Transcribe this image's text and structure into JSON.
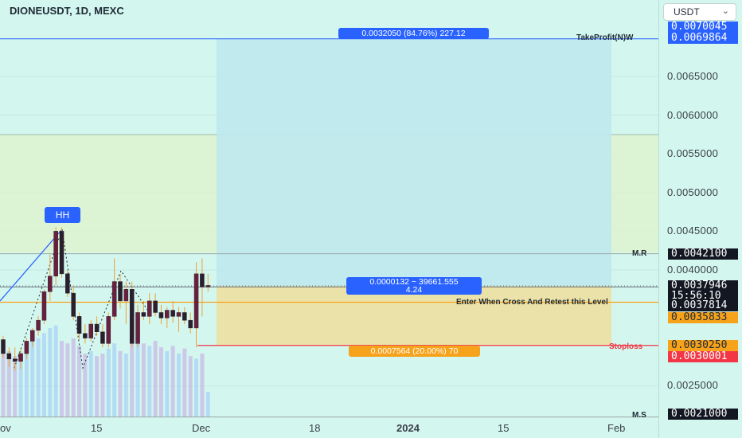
{
  "header": {
    "title": "DIONEUSDT, 1D, MEXC"
  },
  "currency_selector": {
    "value": "USDT",
    "chevron_icon": "chevron-down-icon"
  },
  "price_axis": {
    "ticks": [
      "0.0065000",
      "0.0060000",
      "0.0055000",
      "0.0050000",
      "0.0045000",
      "0.0040000",
      "0.0025000"
    ],
    "tags": [
      {
        "text": "0.0070045",
        "bg": "#2962ff",
        "fg": "#ffffff"
      },
      {
        "text": "0.0069864",
        "bg": "#2962ff",
        "fg": "#ffffff"
      },
      {
        "text": "0.0042100",
        "bg": "#131722",
        "fg": "#ffffff"
      },
      {
        "text": "0.0037946",
        "bg": "#131722",
        "fg": "#ffffff"
      },
      {
        "text": "15:56:10",
        "bg": "#131722",
        "fg": "#ffffff"
      },
      {
        "text": "0.0037814",
        "bg": "#131722",
        "fg": "#ffffff"
      },
      {
        "text": "0.0035833",
        "bg": "#f7a21b",
        "fg": "#1f2a36"
      },
      {
        "text": "0.0030250",
        "bg": "#f7a21b",
        "fg": "#1f2a36"
      },
      {
        "text": "0.0030001",
        "bg": "#f23645",
        "fg": "#ffffff"
      },
      {
        "text": "0.0021000",
        "bg": "#131722",
        "fg": "#ffffff"
      }
    ]
  },
  "time_axis": {
    "labels": [
      "ov",
      "15",
      "Dec",
      "18",
      "2024",
      "15",
      "Feb"
    ]
  },
  "level_labels": {
    "take_profit": "TakeProfit(N)W",
    "mr": "M.R",
    "entry": "Enter When Cross And Retest this Level",
    "stoploss": "Stoploss",
    "ms": "M.S"
  },
  "position_tool": {
    "target_label": "0.0032050 (84.76%) 227.12",
    "center_label_line1": "0.0000132 ~ 39661.555",
    "center_label_line2": "4.24",
    "stop_label": "0.0007564 (20.00%) 70",
    "colors": {
      "target_zone": "#bfe8ee",
      "stop_zone": "#ecdfa0",
      "pill_blue": "#2962ff",
      "pill_orange": "#f7a21b"
    }
  },
  "annotation": {
    "hh_label": "HH"
  },
  "chart_data": {
    "type": "candlestick",
    "symbol": "DIONEUSDT",
    "interval": "1D",
    "exchange": "MEXC",
    "ylim": [
      0.002,
      0.0072
    ],
    "levels": {
      "take_profit": 0.0069864,
      "mr": 0.00421,
      "last": 0.0037946,
      "entry": 0.0037814,
      "entry_orange": 0.0035833,
      "stop_zone_top": 0.003025,
      "stoploss": 0.0030001,
      "ms": 0.0021
    },
    "candles": [
      {
        "o": 0.0031,
        "h": 0.00315,
        "l": 0.00286,
        "c": 0.00292
      },
      {
        "o": 0.00292,
        "h": 0.003,
        "l": 0.00275,
        "c": 0.00285
      },
      {
        "o": 0.00285,
        "h": 0.003,
        "l": 0.0027,
        "c": 0.00282
      },
      {
        "o": 0.00282,
        "h": 0.00298,
        "l": 0.00272,
        "c": 0.00292
      },
      {
        "o": 0.00292,
        "h": 0.00312,
        "l": 0.00285,
        "c": 0.00308
      },
      {
        "o": 0.00308,
        "h": 0.00325,
        "l": 0.003,
        "c": 0.00322
      },
      {
        "o": 0.00322,
        "h": 0.0034,
        "l": 0.00315,
        "c": 0.00335
      },
      {
        "o": 0.00335,
        "h": 0.00375,
        "l": 0.0033,
        "c": 0.00372
      },
      {
        "o": 0.00372,
        "h": 0.0042,
        "l": 0.0036,
        "c": 0.00392
      },
      {
        "o": 0.00392,
        "h": 0.00455,
        "l": 0.0038,
        "c": 0.0045
      },
      {
        "o": 0.0045,
        "h": 0.00455,
        "l": 0.0039,
        "c": 0.00395
      },
      {
        "o": 0.00395,
        "h": 0.004,
        "l": 0.00365,
        "c": 0.0037
      },
      {
        "o": 0.0037,
        "h": 0.0038,
        "l": 0.00335,
        "c": 0.0034
      },
      {
        "o": 0.0034,
        "h": 0.00345,
        "l": 0.0031,
        "c": 0.00318
      },
      {
        "o": 0.00318,
        "h": 0.0033,
        "l": 0.00305,
        "c": 0.00312
      },
      {
        "o": 0.00312,
        "h": 0.00335,
        "l": 0.00308,
        "c": 0.0033
      },
      {
        "o": 0.0033,
        "h": 0.0034,
        "l": 0.00315,
        "c": 0.0032
      },
      {
        "o": 0.0032,
        "h": 0.0033,
        "l": 0.003,
        "c": 0.00305
      },
      {
        "o": 0.00305,
        "h": 0.00345,
        "l": 0.003,
        "c": 0.0034
      },
      {
        "o": 0.0034,
        "h": 0.00415,
        "l": 0.00335,
        "c": 0.00385
      },
      {
        "o": 0.00385,
        "h": 0.00395,
        "l": 0.0035,
        "c": 0.0036
      },
      {
        "o": 0.0036,
        "h": 0.00385,
        "l": 0.0033,
        "c": 0.00375
      },
      {
        "o": 0.00375,
        "h": 0.00385,
        "l": 0.003,
        "c": 0.00305
      },
      {
        "o": 0.00305,
        "h": 0.00355,
        "l": 0.003,
        "c": 0.00345
      },
      {
        "o": 0.00345,
        "h": 0.0036,
        "l": 0.00335,
        "c": 0.0034
      },
      {
        "o": 0.0034,
        "h": 0.0037,
        "l": 0.0033,
        "c": 0.0036
      },
      {
        "o": 0.0036,
        "h": 0.0037,
        "l": 0.0034,
        "c": 0.00345
      },
      {
        "o": 0.00345,
        "h": 0.00355,
        "l": 0.0033,
        "c": 0.00338
      },
      {
        "o": 0.00338,
        "h": 0.00352,
        "l": 0.00325,
        "c": 0.00348
      },
      {
        "o": 0.00348,
        "h": 0.0036,
        "l": 0.00332,
        "c": 0.0034
      },
      {
        "o": 0.0034,
        "h": 0.00352,
        "l": 0.0032,
        "c": 0.00345
      },
      {
        "o": 0.00345,
        "h": 0.00352,
        "l": 0.0033,
        "c": 0.00335
      },
      {
        "o": 0.00335,
        "h": 0.00345,
        "l": 0.00318,
        "c": 0.00325
      },
      {
        "o": 0.00325,
        "h": 0.0041,
        "l": 0.003,
        "c": 0.00395
      },
      {
        "o": 0.00395,
        "h": 0.00415,
        "l": 0.0034,
        "c": 0.00378
      },
      {
        "o": 0.00378,
        "h": 0.00395,
        "l": 0.00372,
        "c": 0.0038
      }
    ],
    "volume_relative": [
      0.55,
      0.52,
      0.48,
      0.5,
      0.56,
      0.6,
      0.62,
      0.66,
      0.7,
      0.72,
      0.6,
      0.58,
      0.62,
      0.56,
      0.5,
      0.52,
      0.48,
      0.5,
      0.54,
      0.58,
      0.52,
      0.5,
      0.6,
      0.62,
      0.58,
      0.56,
      0.6,
      0.55,
      0.52,
      0.56,
      0.5,
      0.54,
      0.48,
      0.46,
      0.5,
      0.2
    ]
  }
}
